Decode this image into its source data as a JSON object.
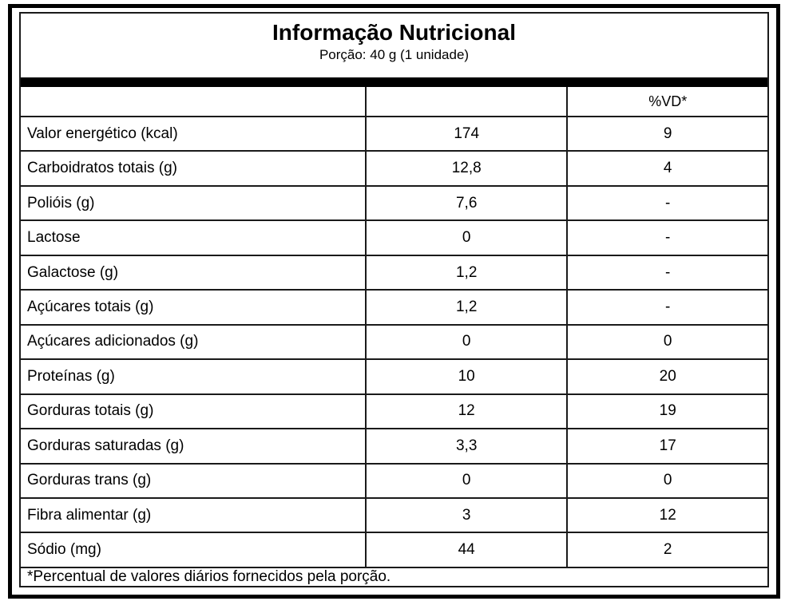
{
  "table": {
    "title": "Informação Nutricional",
    "serving": "Porção: 40 g (1 unidade)",
    "columns": {
      "nutrient_header": "",
      "amount_header": "",
      "dv_header": "%VD*"
    },
    "rows": [
      {
        "label": "Valor energético (kcal)",
        "amount": "174",
        "dv": "9"
      },
      {
        "label": "Carboidratos totais (g)",
        "amount": "12,8",
        "dv": "4"
      },
      {
        "label": "Polióis (g)",
        "amount": "7,6",
        "dv": "-"
      },
      {
        "label": "Lactose",
        "amount": "0",
        "dv": "-"
      },
      {
        "label": "Galactose (g)",
        "amount": "1,2",
        "dv": "-"
      },
      {
        "label": "Açúcares totais (g)",
        "amount": "1,2",
        "dv": "-"
      },
      {
        "label": "Açúcares adicionados (g)",
        "amount": "0",
        "dv": "0"
      },
      {
        "label": "Proteínas (g)",
        "amount": "10",
        "dv": "20"
      },
      {
        "label": "Gorduras totais (g)",
        "amount": "12",
        "dv": "19"
      },
      {
        "label": "Gorduras saturadas (g)",
        "amount": "3,3",
        "dv": "17"
      },
      {
        "label": "Gorduras trans (g)",
        "amount": "0",
        "dv": "0"
      },
      {
        "label": "Fibra alimentar (g)",
        "amount": "3",
        "dv": "12"
      },
      {
        "label": "Sódio (mg)",
        "amount": "44",
        "dv": "2"
      }
    ],
    "footnote": "*Percentual de valores diários fornecidos pela porção."
  },
  "colors": {
    "border": "#000000",
    "inner_lines": "#1a1a1a",
    "background": "#ffffff",
    "text": "#000000"
  }
}
